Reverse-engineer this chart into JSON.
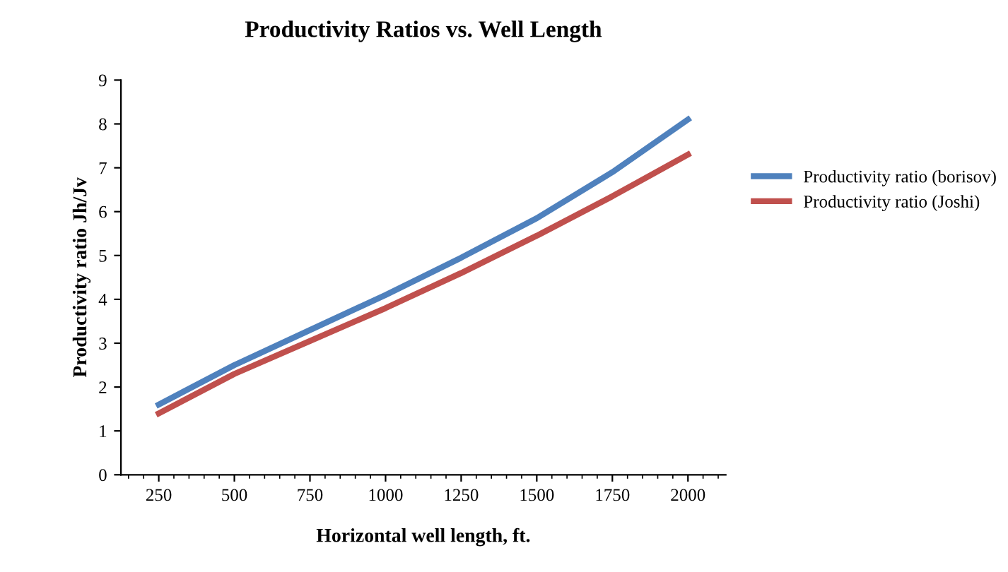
{
  "chart_data": {
    "type": "line",
    "title": "Productivity Ratios vs. Well Length",
    "xlabel": "Horizontal well length, ft.",
    "ylabel": "Productivity ratio Jh/Jv",
    "x": [
      250,
      500,
      750,
      1000,
      1250,
      1500,
      1750,
      2000
    ],
    "series": [
      {
        "name": "Productivity ratio (borisov)",
        "color": "#4f81bd",
        "values": [
          1.6,
          2.5,
          3.3,
          4.1,
          4.95,
          5.85,
          6.9,
          8.1
        ]
      },
      {
        "name": "Productivity ratio (Joshi)",
        "color": "#c0504d",
        "values": [
          1.4,
          2.3,
          3.05,
          3.8,
          4.6,
          5.45,
          6.35,
          7.3
        ]
      }
    ],
    "xlim": [
      125,
      2125
    ],
    "xticks": [
      250,
      500,
      750,
      1000,
      1250,
      1500,
      1750,
      2000
    ],
    "ylim": [
      0,
      9
    ],
    "yticks": [
      0,
      1,
      2,
      3,
      4,
      5,
      6,
      7,
      8,
      9
    ],
    "grid": false,
    "legend": "right",
    "marker": "none",
    "line_style": "solid"
  }
}
